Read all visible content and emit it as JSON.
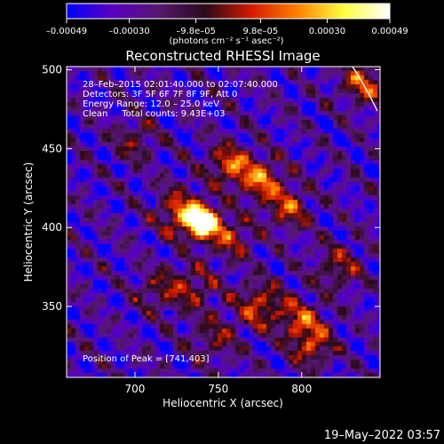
{
  "chart_data": {
    "type": "heatmap",
    "title": "Reconstructed RHESSI Image",
    "xlabel": "Heliocentric X (arcsec)",
    "ylabel": "Heliocentric Y (arcsec)",
    "xlim": [
      659,
      847
    ],
    "ylim": [
      305,
      502
    ],
    "x_ticks": [
      700,
      750,
      800
    ],
    "y_ticks": [
      350,
      400,
      450,
      500
    ],
    "colorbar": {
      "min": -0.00049,
      "max": 0.00049,
      "ticks": [
        {
          "value": -0.00049,
          "label": "–0.00049"
        },
        {
          "value": -0.0003,
          "label": "–0.00030"
        },
        {
          "value": -9.8e-05,
          "label": "–9.8e–05"
        },
        {
          "value": 9.8e-05,
          "label": "9.8e–05"
        },
        {
          "value": 0.0003,
          "label": "0.00030"
        },
        {
          "value": 0.00049,
          "label": "0.00049"
        }
      ],
      "unit_text": "(photons cm⁻² s⁻¹ asec⁻²)",
      "colors": [
        "#0000ff",
        "#5a00c0",
        "#551870",
        "#2a0a1a",
        "#d31a00",
        "#ff8000",
        "#ffff40",
        "#ffffff"
      ]
    },
    "annotations": [
      "28–Feb–2015 02:01:40.000 to 02:07:40.000",
      "Detectors: 3F 5F 6F 7F 8F 9F, Att 0",
      "Energy Range: 12.0 – 25.0 keV",
      "Clean     Total counts: 9.43E+03"
    ],
    "peak_label": "Position of Peak = [741,403]",
    "peak": {
      "x": 741,
      "y": 403
    },
    "sources": [
      {
        "x": 741,
        "y": 403,
        "amp": 1.0,
        "sigma": 7
      },
      {
        "x": 728,
        "y": 410,
        "amp": 0.55,
        "sigma": 10
      },
      {
        "x": 758,
        "y": 393,
        "amp": 0.4,
        "sigma": 9
      },
      {
        "x": 757,
        "y": 440,
        "amp": 0.55,
        "sigma": 9
      },
      {
        "x": 776,
        "y": 430,
        "amp": 0.55,
        "sigma": 9
      },
      {
        "x": 792,
        "y": 412,
        "amp": 0.45,
        "sigma": 9
      },
      {
        "x": 775,
        "y": 350,
        "amp": 0.5,
        "sigma": 10
      },
      {
        "x": 800,
        "y": 342,
        "amp": 0.45,
        "sigma": 9
      },
      {
        "x": 806,
        "y": 325,
        "amp": 0.45,
        "sigma": 9
      },
      {
        "x": 838,
        "y": 492,
        "amp": 0.5,
        "sigma": 10
      },
      {
        "x": 735,
        "y": 362,
        "amp": 0.35,
        "sigma": 10
      },
      {
        "x": 700,
        "y": 455,
        "amp": 0.3,
        "sigma": 9
      },
      {
        "x": 714,
        "y": 360,
        "amp": 0.3,
        "sigma": 9
      },
      {
        "x": 748,
        "y": 330,
        "amp": 0.3,
        "sigma": 10
      },
      {
        "x": 822,
        "y": 375,
        "amp": 0.35,
        "sigma": 10
      }
    ],
    "timestamp": "19–May–2022 03:57"
  }
}
